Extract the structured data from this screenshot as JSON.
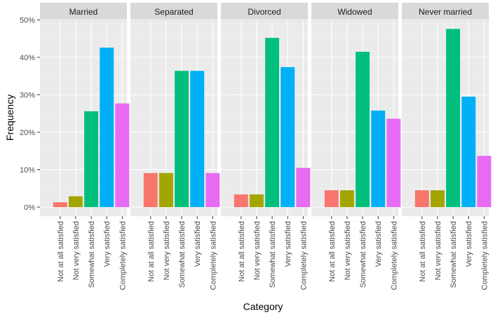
{
  "chart_data": {
    "type": "bar",
    "facets": [
      "Married",
      "Separated",
      "Divorced",
      "Widowed",
      "Never married"
    ],
    "categories": [
      "Not at all satisfied",
      "Not very satisfied",
      "Somewhat satisfied",
      "Very satisfied",
      "Completely satisfied"
    ],
    "colors": [
      "#F8766D",
      "#A3A500",
      "#00BF7D",
      "#00B0F6",
      "#E76BF3"
    ],
    "values": {
      "Married": [
        1.3,
        2.9,
        25.6,
        42.6,
        27.7
      ],
      "Separated": [
        9.1,
        9.1,
        36.4,
        36.4,
        9.1
      ],
      "Divorced": [
        3.4,
        3.4,
        45.2,
        37.4,
        10.5
      ],
      "Widowed": [
        4.5,
        4.5,
        41.5,
        25.8,
        23.6
      ],
      "Never married": [
        4.5,
        4.5,
        47.6,
        29.5,
        13.7
      ]
    },
    "ylim": [
      0,
      50
    ],
    "yticks": [
      "0%",
      "10%",
      "20%",
      "30%",
      "40%",
      "50%"
    ],
    "xlabel": "Category",
    "ylabel": "Frequency"
  }
}
